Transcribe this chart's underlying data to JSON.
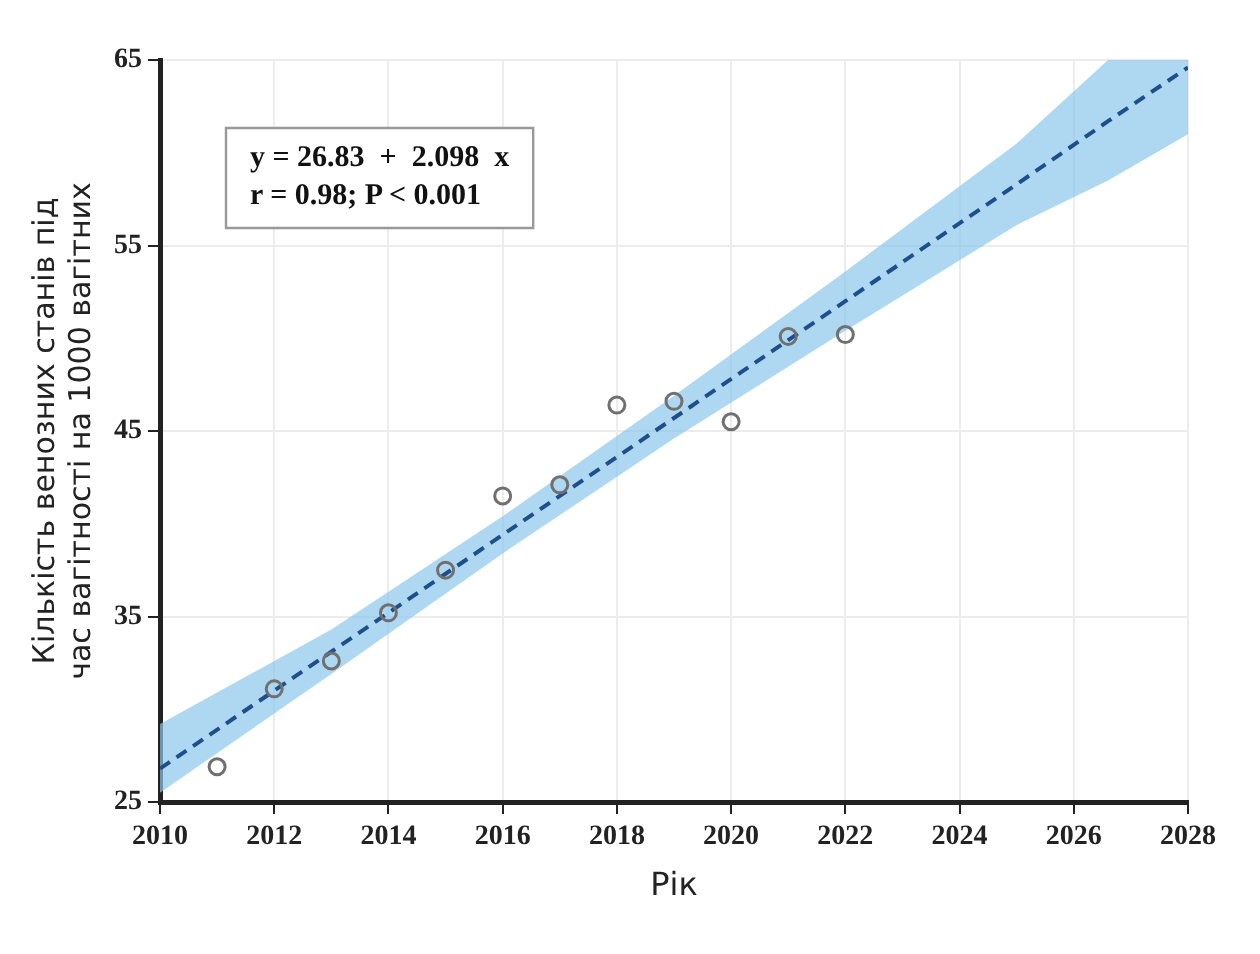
{
  "chart_data": {
    "type": "scatter",
    "xlabel": "Рік",
    "ylabel": "Кількість венозних станів під час вагітності на 1000 вагітних",
    "xlim": [
      2010,
      2028
    ],
    "xticks": [
      2010,
      2012,
      2014,
      2016,
      2018,
      2020,
      2022,
      2024,
      2026,
      2028
    ],
    "ylim": [
      25,
      65
    ],
    "yticks": [
      25,
      35,
      45,
      55,
      65
    ],
    "grid": true,
    "legend": false,
    "annotations": [
      "y = 26.83  +  2.098  x",
      "r = 0.98; P < 0.001"
    ],
    "series": [
      {
        "type": "scatter",
        "marker": "circle",
        "color": "#707070",
        "x": [
          2011,
          2012,
          2013,
          2014,
          2015,
          2016,
          2017,
          2018,
          2019,
          2020,
          2021,
          2022
        ],
        "values": [
          26.9,
          31.1,
          32.6,
          35.2,
          37.5,
          41.5,
          42.1,
          46.4,
          46.6,
          45.5,
          50.1,
          50.2
        ]
      },
      {
        "type": "line",
        "marker": "none",
        "line_style": "dashed",
        "color": "#1f4e8c",
        "x": [
          2010,
          2013,
          2016,
          2019,
          2022,
          2025,
          2026.6,
          2028
        ],
        "values": [
          26.8,
          33.1,
          39.4,
          45.7,
          52.0,
          58.3,
          61.7,
          64.6
        ],
        "lower": [
          25.5,
          31.9,
          38.4,
          44.6,
          50.4,
          56.1,
          58.5,
          61.0
        ],
        "upper": [
          29.2,
          34.3,
          40.4,
          46.9,
          53.6,
          60.5,
          65,
          65
        ]
      }
    ]
  }
}
